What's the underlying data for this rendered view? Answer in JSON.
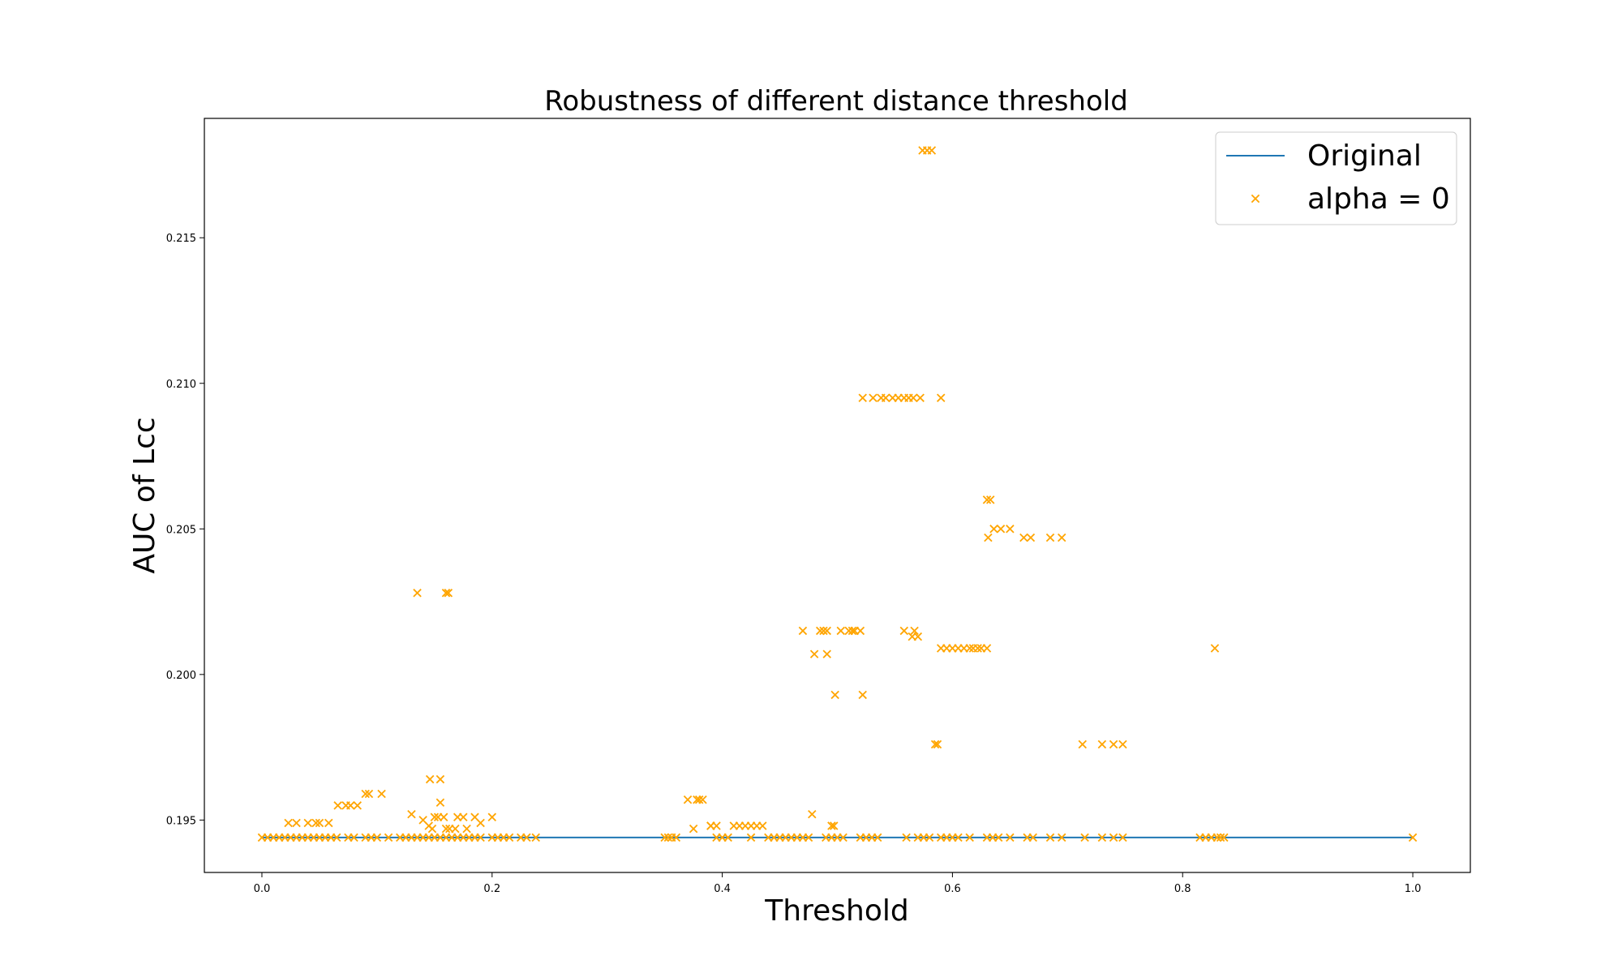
{
  "colors": {
    "original_line": "#1f77b4",
    "alpha_marker": "#ffa500",
    "axes": "#000000",
    "legend_border": "#cccccc",
    "background": "#ffffff"
  },
  "chart_data": {
    "type": "scatter",
    "title": "Robustness of different distance threshold",
    "xlabel": "Threshold",
    "ylabel": "AUC of Lcc",
    "xlim": [
      -0.05,
      1.05
    ],
    "ylim": [
      0.1932,
      0.2191
    ],
    "xticks": [
      0.0,
      0.2,
      0.4,
      0.6,
      0.8,
      1.0
    ],
    "xtick_labels": [
      "0.0",
      "0.2",
      "0.4",
      "0.6",
      "0.8",
      "1.0"
    ],
    "yticks": [
      0.195,
      0.2,
      0.205,
      0.21,
      0.215
    ],
    "ytick_labels": [
      "0.195",
      "0.200",
      "0.205",
      "0.210",
      "0.215"
    ],
    "grid": false,
    "legend_position": "top-right",
    "series": [
      {
        "name": "Original",
        "kind": "line",
        "x": [
          0.0,
          1.0
        ],
        "y": [
          0.1944,
          0.1944
        ]
      },
      {
        "name": "alpha = 0",
        "kind": "scatter",
        "marker": "x",
        "x": [
          0.0,
          0.005,
          0.01,
          0.015,
          0.02,
          0.025,
          0.03,
          0.035,
          0.04,
          0.045,
          0.05,
          0.055,
          0.06,
          0.065,
          0.075,
          0.08,
          0.09,
          0.095,
          0.1,
          0.11,
          0.12,
          0.125,
          0.13,
          0.135,
          0.14,
          0.145,
          0.15,
          0.155,
          0.16,
          0.165,
          0.17,
          0.175,
          0.18,
          0.185,
          0.19,
          0.2,
          0.205,
          0.21,
          0.215,
          0.225,
          0.23,
          0.238,
          0.35,
          0.353,
          0.356,
          0.36,
          0.395,
          0.4,
          0.405,
          0.425,
          0.44,
          0.445,
          0.45,
          0.455,
          0.46,
          0.465,
          0.47,
          0.475,
          0.49,
          0.495,
          0.5,
          0.505,
          0.52,
          0.525,
          0.53,
          0.535,
          0.56,
          0.57,
          0.575,
          0.58,
          0.59,
          0.595,
          0.6,
          0.605,
          0.615,
          0.63,
          0.635,
          0.64,
          0.65,
          0.665,
          0.67,
          0.685,
          0.695,
          0.715,
          0.73,
          0.74,
          0.748,
          0.815,
          0.82,
          0.825,
          0.83,
          0.833,
          0.836,
          1.0,
          0.023,
          0.03,
          0.04,
          0.047,
          0.05,
          0.058,
          0.066,
          0.073,
          0.077,
          0.083,
          0.09,
          0.093,
          0.104,
          0.13,
          0.14,
          0.145,
          0.148,
          0.15,
          0.153,
          0.155,
          0.158,
          0.16,
          0.163,
          0.168,
          0.17,
          0.175,
          0.178,
          0.185,
          0.19,
          0.2,
          0.146,
          0.155,
          0.135,
          0.16,
          0.162,
          0.37,
          0.375,
          0.378,
          0.38,
          0.383,
          0.39,
          0.395,
          0.39,
          0.41,
          0.415,
          0.42,
          0.425,
          0.43,
          0.435,
          0.478,
          0.495,
          0.497,
          0.47,
          0.485,
          0.488,
          0.491,
          0.503,
          0.51,
          0.513,
          0.515,
          0.52,
          0.558,
          0.567,
          0.48,
          0.491,
          0.565,
          0.57,
          0.59,
          0.595,
          0.6,
          0.605,
          0.61,
          0.615,
          0.618,
          0.622,
          0.625,
          0.63,
          0.498,
          0.522,
          0.585,
          0.587,
          0.713,
          0.73,
          0.74,
          0.748,
          0.828,
          0.63,
          0.633,
          0.631,
          0.636,
          0.642,
          0.65,
          0.662,
          0.668,
          0.685,
          0.695,
          0.522,
          0.531,
          0.538,
          0.542,
          0.548,
          0.553,
          0.558,
          0.562,
          0.566,
          0.572,
          0.59,
          0.574,
          0.578,
          0.582
        ],
        "y": [
          0.1944,
          0.1944,
          0.1944,
          0.1944,
          0.1944,
          0.1944,
          0.1944,
          0.1944,
          0.1944,
          0.1944,
          0.1944,
          0.1944,
          0.1944,
          0.1944,
          0.1944,
          0.1944,
          0.1944,
          0.1944,
          0.1944,
          0.1944,
          0.1944,
          0.1944,
          0.1944,
          0.1944,
          0.1944,
          0.1944,
          0.1944,
          0.1944,
          0.1944,
          0.1944,
          0.1944,
          0.1944,
          0.1944,
          0.1944,
          0.1944,
          0.1944,
          0.1944,
          0.1944,
          0.1944,
          0.1944,
          0.1944,
          0.1944,
          0.1944,
          0.1944,
          0.1944,
          0.1944,
          0.1944,
          0.1944,
          0.1944,
          0.1944,
          0.1944,
          0.1944,
          0.1944,
          0.1944,
          0.1944,
          0.1944,
          0.1944,
          0.1944,
          0.1944,
          0.1944,
          0.1944,
          0.1944,
          0.1944,
          0.1944,
          0.1944,
          0.1944,
          0.1944,
          0.1944,
          0.1944,
          0.1944,
          0.1944,
          0.1944,
          0.1944,
          0.1944,
          0.1944,
          0.1944,
          0.1944,
          0.1944,
          0.1944,
          0.1944,
          0.1944,
          0.1944,
          0.1944,
          0.1944,
          0.1944,
          0.1944,
          0.1944,
          0.1944,
          0.1944,
          0.1944,
          0.1944,
          0.1944,
          0.1944,
          0.1944,
          0.1949,
          0.1949,
          0.1949,
          0.1949,
          0.1949,
          0.1949,
          0.1955,
          0.1955,
          0.1955,
          0.1955,
          0.1959,
          0.1959,
          0.1959,
          0.1952,
          0.195,
          0.1948,
          0.1947,
          0.1951,
          0.1951,
          0.1956,
          0.1951,
          0.1947,
          0.1947,
          0.1947,
          0.1951,
          0.1951,
          0.1947,
          0.1951,
          0.1949,
          0.1951,
          0.1964,
          0.1964,
          0.2028,
          0.2028,
          0.2028,
          0.1957,
          0.1947,
          0.1957,
          0.1957,
          0.1957,
          0.1948,
          0.1948,
          0.1948,
          0.1948,
          0.1948,
          0.1948,
          0.1948,
          0.1948,
          0.1948,
          0.1952,
          0.1948,
          0.1948,
          0.2015,
          0.2015,
          0.2015,
          0.2015,
          0.2015,
          0.2015,
          0.2015,
          0.2015,
          0.2015,
          0.2015,
          0.2015,
          0.2007,
          0.2007,
          0.2013,
          0.2013,
          0.2009,
          0.2009,
          0.2009,
          0.2009,
          0.2009,
          0.2009,
          0.2009,
          0.2009,
          0.2009,
          0.2009,
          0.1993,
          0.1993,
          0.1976,
          0.1976,
          0.1976,
          0.1976,
          0.1976,
          0.1976,
          0.2009,
          0.206,
          0.206,
          0.2047,
          0.205,
          0.205,
          0.205,
          0.2047,
          0.2047,
          0.2047,
          0.2047,
          0.2095,
          0.2095,
          0.2095,
          0.2095,
          0.2095,
          0.2095,
          0.2095,
          0.2095,
          0.2095,
          0.2095,
          0.2095,
          0.218,
          0.218,
          0.218
        ]
      }
    ]
  }
}
